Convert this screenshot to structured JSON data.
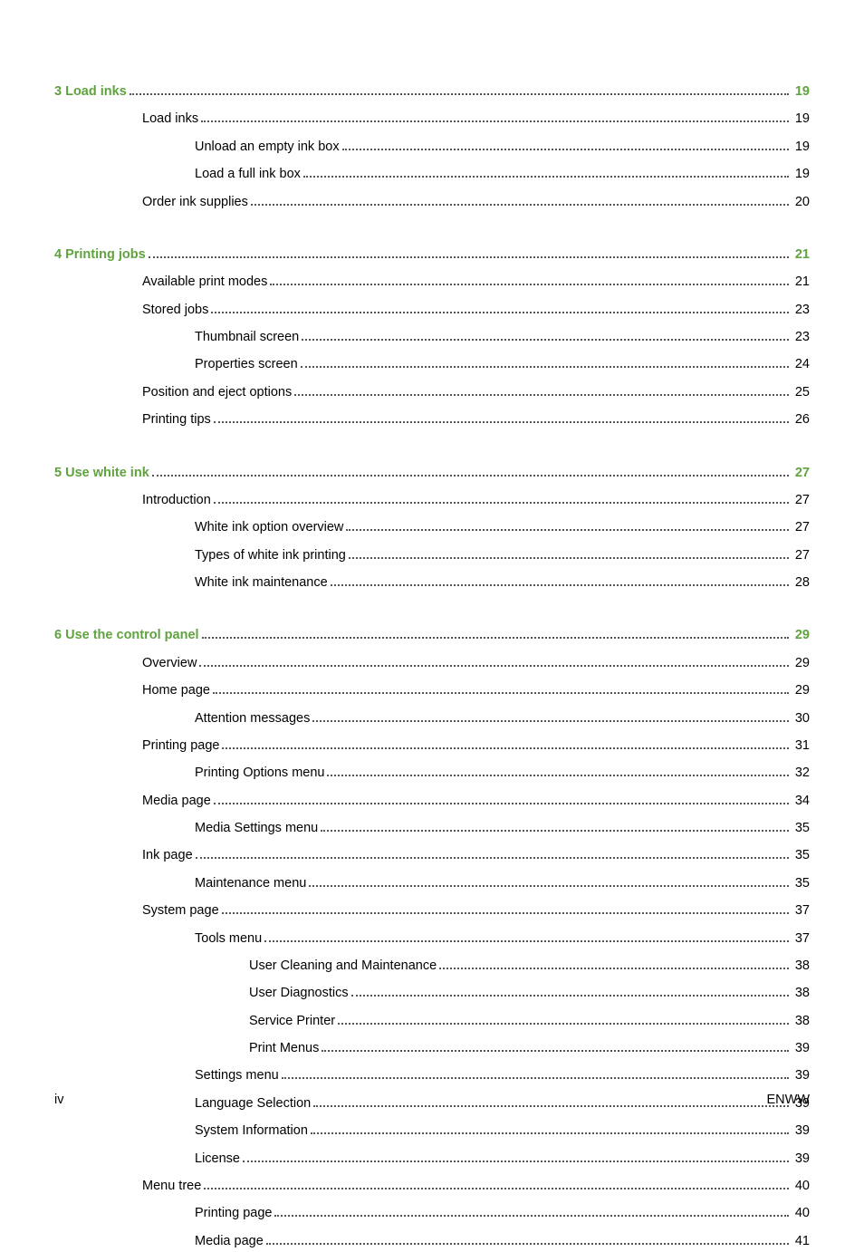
{
  "colors": {
    "chapter": "#5fa33f",
    "text": "#000000",
    "background": "#ffffff",
    "dots": "#555555"
  },
  "typography": {
    "font_family": "Arial",
    "toc_fontsize_pt": 11,
    "footer_fontsize_pt": 11,
    "line_height": 1.6
  },
  "toc": [
    {
      "level": 0,
      "chapter": "3",
      "title": "Load inks",
      "page": "19",
      "is_chapter": true
    },
    {
      "level": 1,
      "title": "Load inks",
      "page": "19"
    },
    {
      "level": 2,
      "title": "Unload an empty ink box",
      "page": "19"
    },
    {
      "level": 2,
      "title": "Load a full ink box",
      "page": "19"
    },
    {
      "level": 1,
      "title": "Order ink supplies",
      "page": "20"
    },
    {
      "gap": true
    },
    {
      "level": 0,
      "chapter": "4",
      "title": "Printing jobs",
      "page": "21",
      "is_chapter": true
    },
    {
      "level": 1,
      "title": "Available print modes",
      "page": "21"
    },
    {
      "level": 1,
      "title": "Stored jobs",
      "page": "23"
    },
    {
      "level": 2,
      "title": "Thumbnail screen",
      "page": "23"
    },
    {
      "level": 2,
      "title": "Properties screen",
      "page": "24"
    },
    {
      "level": 1,
      "title": "Position and eject options",
      "page": "25"
    },
    {
      "level": 1,
      "title": "Printing tips",
      "page": "26"
    },
    {
      "gap": true
    },
    {
      "level": 0,
      "chapter": "5",
      "title": "Use white ink",
      "page": "27",
      "is_chapter": true
    },
    {
      "level": 1,
      "title": "Introduction",
      "page": "27"
    },
    {
      "level": 2,
      "title": "White ink option overview",
      "page": "27"
    },
    {
      "level": 2,
      "title": "Types of white ink printing",
      "page": "27"
    },
    {
      "level": 2,
      "title": "White ink maintenance",
      "page": "28"
    },
    {
      "gap": true
    },
    {
      "level": 0,
      "chapter": "6",
      "title": "Use the control panel",
      "page": "29",
      "is_chapter": true
    },
    {
      "level": 1,
      "title": "Overview",
      "page": "29"
    },
    {
      "level": 1,
      "title": "Home page",
      "page": "29"
    },
    {
      "level": 2,
      "title": "Attention messages",
      "page": "30"
    },
    {
      "level": 1,
      "title": "Printing page",
      "page": "31"
    },
    {
      "level": 2,
      "title": "Printing Options menu",
      "page": "32"
    },
    {
      "level": 1,
      "title": "Media page",
      "page": "34"
    },
    {
      "level": 2,
      "title": "Media Settings menu",
      "page": "35"
    },
    {
      "level": 1,
      "title": "Ink page",
      "page": "35"
    },
    {
      "level": 2,
      "title": "Maintenance menu",
      "page": "35"
    },
    {
      "level": 1,
      "title": "System page",
      "page": "37"
    },
    {
      "level": 2,
      "title": "Tools menu",
      "page": "37"
    },
    {
      "level": 3,
      "title": "User Cleaning and Maintenance",
      "page": "38"
    },
    {
      "level": 3,
      "title": "User Diagnostics",
      "page": "38"
    },
    {
      "level": 3,
      "title": "Service Printer",
      "page": "38"
    },
    {
      "level": 3,
      "title": "Print Menus",
      "page": "39"
    },
    {
      "level": 2,
      "title": "Settings menu",
      "page": "39"
    },
    {
      "level": 2,
      "title": "Language Selection",
      "page": "39"
    },
    {
      "level": 2,
      "title": "System Information",
      "page": "39"
    },
    {
      "level": 2,
      "title": "License",
      "page": "39"
    },
    {
      "level": 1,
      "title": "Menu tree",
      "page": "40"
    },
    {
      "level": 2,
      "title": "Printing page",
      "page": "40"
    },
    {
      "level": 2,
      "title": "Media page",
      "page": "41"
    }
  ],
  "footer": {
    "left": "iv",
    "right": "ENWW"
  }
}
